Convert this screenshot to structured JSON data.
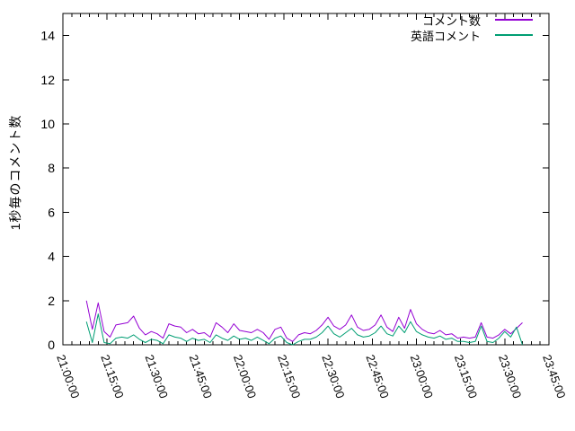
{
  "window": {
    "background": "#ffffff",
    "axis_color": "#000000",
    "text_color": "#000000"
  },
  "chart_data": {
    "type": "line",
    "title": "",
    "xlabel": "",
    "ylabel": "1秒毎のコメント数",
    "x_axis": {
      "tick_labels": [
        "21:00:00",
        "21:15:00",
        "21:30:00",
        "21:45:00",
        "22:00:00",
        "22:15:00",
        "22:30:00",
        "22:45:00",
        "23:00:00",
        "23:15:00",
        "23:30:00",
        "23:45:00"
      ],
      "tick_interval_min": 15,
      "minor_tick_interval_min": 3,
      "range_min": [
        0,
        165
      ],
      "label_rotation_deg": 70
    },
    "y_axis": {
      "tick_labels": [
        "0",
        "2",
        "4",
        "6",
        "8",
        "10",
        "12",
        "14"
      ],
      "tick_values": [
        0,
        2,
        4,
        6,
        8,
        10,
        12,
        14
      ],
      "range": [
        0,
        15
      ]
    },
    "legend": {
      "position": "top-right-inside",
      "entries": [
        {
          "label": "コメント数",
          "color": "#9400d3"
        },
        {
          "label": "英語コメント",
          "color": "#009e73"
        }
      ]
    },
    "series": [
      {
        "name": "コメント数",
        "color": "#9400d3",
        "start_min_after_2100": 8,
        "step_min": 2,
        "values": [
          2.0,
          0.7,
          1.9,
          0.6,
          0.35,
          0.9,
          0.95,
          1.0,
          1.3,
          0.75,
          0.45,
          0.6,
          0.5,
          0.3,
          0.95,
          0.85,
          0.8,
          0.55,
          0.7,
          0.5,
          0.55,
          0.35,
          1.0,
          0.8,
          0.55,
          0.95,
          0.65,
          0.6,
          0.55,
          0.7,
          0.55,
          0.25,
          0.7,
          0.8,
          0.3,
          0.15,
          0.45,
          0.55,
          0.5,
          0.65,
          0.9,
          1.25,
          0.85,
          0.7,
          0.9,
          1.35,
          0.8,
          0.65,
          0.7,
          0.9,
          1.35,
          0.8,
          0.6,
          1.25,
          0.75,
          1.6,
          0.95,
          0.7,
          0.55,
          0.5,
          0.65,
          0.45,
          0.5,
          0.3,
          0.35,
          0.3,
          0.35,
          1.0,
          0.35,
          0.3,
          0.45,
          0.7,
          0.5,
          0.75,
          1.0
        ]
      },
      {
        "name": "英語コメント",
        "color": "#009e73",
        "start_min_after_2100": 8,
        "step_min": 2,
        "values": [
          1.05,
          0.1,
          1.4,
          0.1,
          0.05,
          0.3,
          0.35,
          0.3,
          0.45,
          0.25,
          0.1,
          0.25,
          0.2,
          0.05,
          0.45,
          0.35,
          0.3,
          0.15,
          0.3,
          0.2,
          0.25,
          0.1,
          0.45,
          0.3,
          0.2,
          0.4,
          0.25,
          0.3,
          0.2,
          0.35,
          0.2,
          0.05,
          0.3,
          0.4,
          0.1,
          0.0,
          0.15,
          0.25,
          0.25,
          0.35,
          0.55,
          0.85,
          0.5,
          0.35,
          0.55,
          0.75,
          0.45,
          0.35,
          0.4,
          0.55,
          0.85,
          0.5,
          0.4,
          0.85,
          0.55,
          1.05,
          0.6,
          0.45,
          0.35,
          0.3,
          0.4,
          0.25,
          0.3,
          0.15,
          0.15,
          0.1,
          0.15,
          0.85,
          0.15,
          0.1,
          0.3,
          0.6,
          0.35,
          0.8,
          0.0
        ]
      }
    ]
  }
}
